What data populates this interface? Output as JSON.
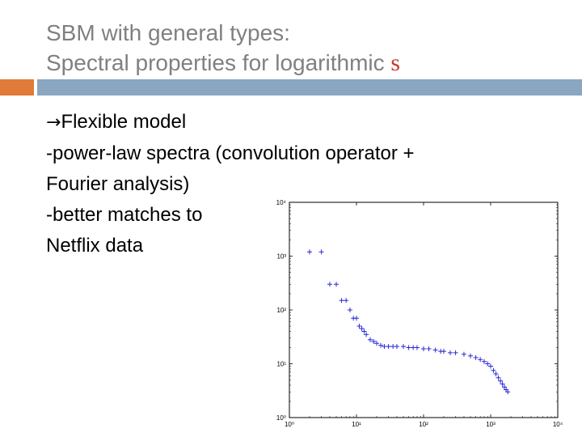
{
  "title": {
    "line1": "SBM with general types:",
    "line2_prefix": "Spectral properties for logarithmic ",
    "line2_var": "s"
  },
  "body": {
    "arrow": "→",
    "line1": "Flexible model",
    "line2": "-power-law spectra (convolution operator +",
    "line3": "Fourier analysis)",
    "line4": "-better matches to",
    "line5": "Netflix data"
  },
  "colors": {
    "title": "#808080",
    "accent_orange": "#e07b39",
    "accent_blue": "#8aa6c1",
    "markers": "#2a2ad8"
  },
  "chart_data": {
    "type": "scatter",
    "title": "",
    "xlabel": "",
    "ylabel": "",
    "xscale": "log",
    "yscale": "log",
    "xlim": [
      1,
      10000
    ],
    "ylim": [
      1,
      10000
    ],
    "xticks": [
      "10⁰",
      "10¹",
      "10²",
      "10³",
      "10⁴"
    ],
    "yticks": [
      "10⁰",
      "10¹",
      "10²",
      "10³",
      "10⁴"
    ],
    "grid": false,
    "series": [
      {
        "x": [
          2,
          3,
          4,
          5,
          6,
          7,
          8,
          9,
          10,
          11,
          12,
          13,
          14,
          16,
          18,
          20,
          23,
          26,
          30,
          35,
          40,
          50,
          60,
          70,
          80,
          100,
          120,
          150,
          180,
          200,
          250,
          300,
          400,
          500,
          600,
          700,
          800,
          900,
          1000,
          1100,
          1200,
          1300,
          1400,
          1500,
          1600,
          1700,
          1800
        ],
        "y": [
          1200,
          1200,
          300,
          300,
          150,
          150,
          100,
          70,
          70,
          50,
          45,
          40,
          35,
          28,
          26,
          24,
          22,
          21,
          21,
          21,
          21,
          21,
          20,
          20,
          20,
          19,
          19,
          18,
          17,
          17,
          16,
          16,
          15,
          14,
          13,
          12,
          11,
          10,
          9,
          7.5,
          6.5,
          5.5,
          4.8,
          4.2,
          3.7,
          3.3,
          3
        ]
      }
    ]
  }
}
